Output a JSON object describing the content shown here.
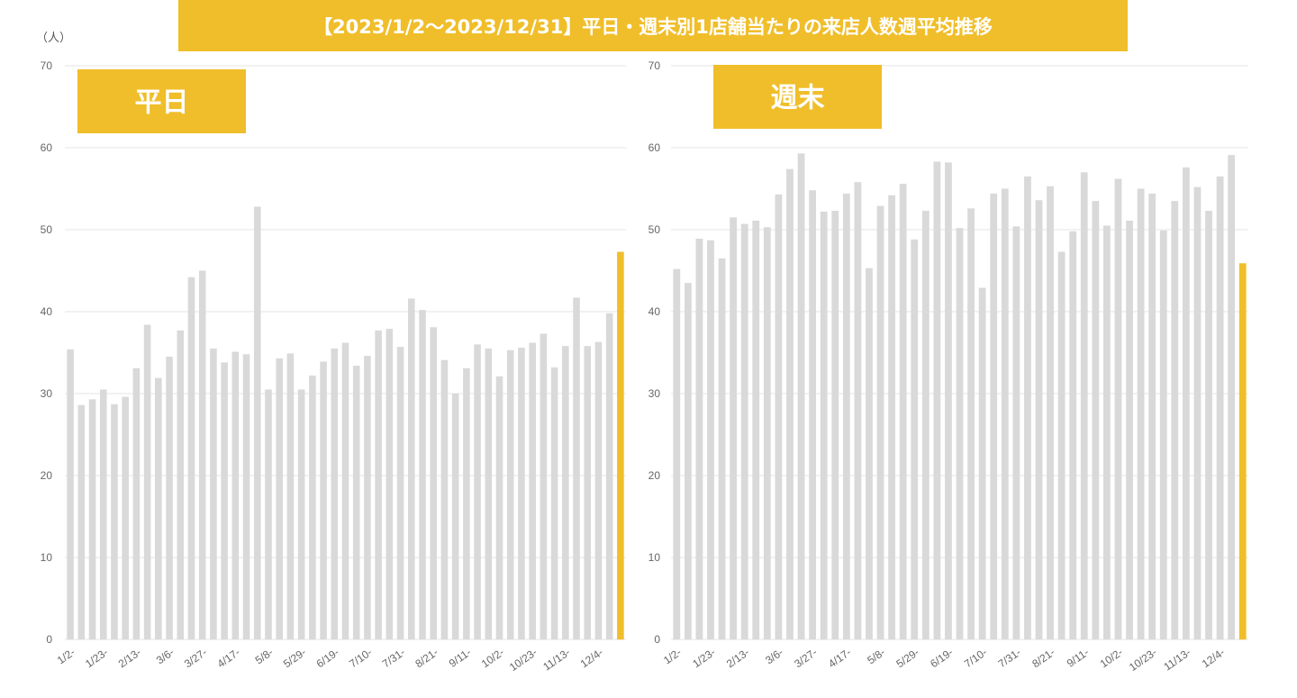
{
  "header": {
    "title": "【2023/1/2～2023/12/31】平日・週末別1店舗当たりの来店人数週平均推移"
  },
  "colors": {
    "bar": "#D9D9D9",
    "highlight": "#F0BE2A",
    "grid": "#E6E6E6"
  },
  "chart_data": [
    {
      "type": "bar",
      "title": "平日",
      "unit_label": "（人）",
      "ylim": [
        0,
        70
      ],
      "yticks": [
        0,
        10,
        20,
        30,
        40,
        50,
        60,
        70
      ],
      "highlight_last": true,
      "x": [
        "1/2-",
        "1/9-",
        "1/16-",
        "1/23-",
        "1/30-",
        "2/6-",
        "2/13-",
        "2/20-",
        "2/27-",
        "3/6-",
        "3/13-",
        "3/20-",
        "3/27-",
        "4/3-",
        "4/10-",
        "4/17-",
        "4/24-",
        "5/1-",
        "5/8-",
        "5/15-",
        "5/22-",
        "5/29-",
        "6/5-",
        "6/12-",
        "6/19-",
        "6/26-",
        "7/3-",
        "7/10-",
        "7/17-",
        "7/24-",
        "7/31-",
        "8/7-",
        "8/14-",
        "8/21-",
        "8/28-",
        "9/4-",
        "9/11-",
        "9/18-",
        "9/25-",
        "10/2-",
        "10/9-",
        "10/16-",
        "10/23-",
        "10/30-",
        "11/6-",
        "11/13-",
        "11/20-",
        "11/27-",
        "12/4-",
        "12/11-",
        "12/18-"
      ],
      "x_tick_labels": [
        "1/2-",
        "1/23-",
        "2/13-",
        "3/6-",
        "3/27-",
        "4/17-",
        "5/8-",
        "5/29-",
        "6/19-",
        "7/10-",
        "7/31-",
        "8/21-",
        "9/11-",
        "10/2-",
        "10/23-",
        "11/13-",
        "12/4-"
      ],
      "values": [
        35.4,
        28.6,
        29.3,
        30.5,
        28.7,
        29.6,
        33.1,
        38.4,
        31.9,
        34.5,
        37.7,
        44.2,
        45.0,
        35.5,
        33.8,
        35.1,
        34.8,
        52.8,
        30.5,
        34.3,
        34.9,
        30.5,
        32.2,
        33.9,
        35.5,
        36.2,
        33.4,
        34.6,
        37.7,
        37.9,
        35.7,
        41.6,
        40.2,
        38.1,
        34.1,
        30.0,
        33.1,
        36.0,
        35.5,
        32.1,
        35.3,
        35.6,
        36.2,
        37.3,
        33.2,
        35.8,
        41.7,
        35.8,
        36.3,
        39.8,
        47.3
      ]
    },
    {
      "type": "bar",
      "title": "週末",
      "ylim": [
        0,
        70
      ],
      "yticks": [
        0,
        10,
        20,
        30,
        40,
        50,
        60,
        70
      ],
      "highlight_last": true,
      "x": [
        "1/2-",
        "1/9-",
        "1/16-",
        "1/23-",
        "1/30-",
        "2/6-",
        "2/13-",
        "2/20-",
        "2/27-",
        "3/6-",
        "3/13-",
        "3/20-",
        "3/27-",
        "4/3-",
        "4/10-",
        "4/17-",
        "4/24-",
        "5/1-",
        "5/8-",
        "5/15-",
        "5/22-",
        "5/29-",
        "6/5-",
        "6/12-",
        "6/19-",
        "6/26-",
        "7/3-",
        "7/10-",
        "7/17-",
        "7/24-",
        "7/31-",
        "8/7-",
        "8/14-",
        "8/21-",
        "8/28-",
        "9/4-",
        "9/11-",
        "9/18-",
        "9/25-",
        "10/2-",
        "10/9-",
        "10/16-",
        "10/23-",
        "10/30-",
        "11/6-",
        "11/13-",
        "11/20-",
        "11/27-",
        "12/4-",
        "12/11-",
        "12/18-"
      ],
      "x_tick_labels": [
        "1/2-",
        "1/23-",
        "2/13-",
        "3/6-",
        "3/27-",
        "4/17-",
        "5/8-",
        "5/29-",
        "6/19-",
        "7/10-",
        "7/31-",
        "8/21-",
        "9/11-",
        "10/2-",
        "10/23-",
        "11/13-",
        "12/4-"
      ],
      "values": [
        45.2,
        43.5,
        48.9,
        48.7,
        46.5,
        51.5,
        50.7,
        51.1,
        50.3,
        54.3,
        57.4,
        59.3,
        54.8,
        52.2,
        52.3,
        54.4,
        55.8,
        45.3,
        52.9,
        54.2,
        55.6,
        48.8,
        52.3,
        58.3,
        58.2,
        50.2,
        52.6,
        42.9,
        54.4,
        55.0,
        50.4,
        56.5,
        53.6,
        55.3,
        47.3,
        49.8,
        57.0,
        53.5,
        50.5,
        56.2,
        51.1,
        55.0,
        54.4,
        49.9,
        53.5,
        57.6,
        55.2,
        52.3,
        56.5,
        59.1,
        45.9
      ]
    }
  ]
}
